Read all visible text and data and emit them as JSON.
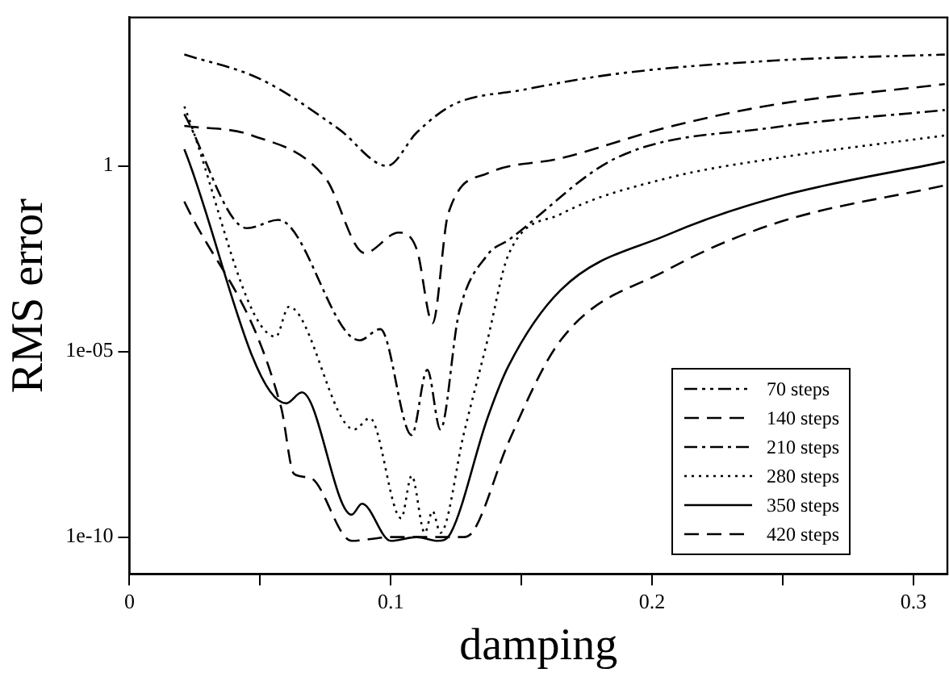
{
  "chart_data": {
    "type": "line",
    "xlabel": "damping",
    "ylabel": "RMS error",
    "log": "y",
    "grid": false,
    "legend": "bottom right",
    "marker": "none",
    "xlim": [
      0,
      0.313
    ],
    "xticks": [
      0,
      {
        "value": 0.05,
        "label": null
      },
      0.1,
      {
        "value": 0.15,
        "label": null
      },
      0.2,
      {
        "value": 0.25,
        "label": null
      },
      0.3
    ],
    "ylim": [
      1e-11,
      10000.0
    ],
    "yticks": [
      {
        "value": 1e-10,
        "label": "1e-10"
      },
      {
        "value": 1e-05,
        "label": "1e-05"
      },
      1
    ],
    "series": [
      {
        "name": "70 steps",
        "color": "#000000",
        "line_style": "dashdotdot",
        "x": [
          0.021,
          0.05,
          0.08,
          0.0986,
          0.11,
          0.124,
          0.15,
          0.186,
          0.247,
          0.312
        ],
        "values": [
          1000.0,
          220.0,
          10.0,
          1,
          8,
          45,
          110.0,
          300.0,
          690.0,
          1000.0
        ]
      },
      {
        "name": "140 steps",
        "color": "#000000",
        "line_style": "dashed",
        "x": [
          0.021,
          0.047,
          0.075,
          0.09,
          0.103,
          0.11,
          0.116,
          0.122,
          0.137,
          0.165,
          0.206,
          0.247,
          0.312
        ],
        "values": [
          12,
          6.6,
          0.47,
          0.0045,
          0.016,
          0.0055,
          5.8e-05,
          0.052,
          0.63,
          1.6,
          11,
          45,
          160.0
        ]
      },
      {
        "name": "210 steps",
        "color": "#000000",
        "line_style": "dashdot",
        "x": [
          0.021,
          0.045,
          0.057,
          0.088,
          0.096,
          0.108,
          0.114,
          0.119,
          0.126,
          0.137,
          0.145,
          0.186,
          0.247,
          0.312
        ],
        "values": [
          25,
          0.021,
          0.035,
          2e-05,
          4e-05,
          5.6e-08,
          3.2e-06,
          7.9e-08,
          0.0001,
          0.004,
          0.01,
          1.6,
          11,
          32
        ]
      },
      {
        "name": "280 steps",
        "color": "#000000",
        "line_style": "dotted",
        "x": [
          0.021,
          0.056,
          0.061,
          0.086,
          0.092,
          0.104,
          0.108,
          0.113,
          0.116,
          0.119,
          0.128,
          0.137,
          0.145,
          0.165,
          0.206,
          0.247,
          0.312
        ],
        "values": [
          40,
          2.5e-05,
          0.00016,
          7.9e-08,
          1.6e-07,
          3.2e-10,
          4.5e-09,
          1.3e-10,
          5e-10,
          1.3e-10,
          6.3e-08,
          2e-05,
          0.004,
          0.05,
          0.47,
          1.6,
          6.6
        ]
      },
      {
        "name": "350 steps",
        "color": "#000000",
        "line_style": "solid",
        "x": [
          0.021,
          0.06,
          0.066,
          0.085,
          0.089,
          0.1,
          0.11,
          0.118,
          0.123,
          0.137,
          0.145,
          0.165,
          0.206,
          0.247,
          0.312
        ],
        "values": [
          2.8,
          4e-07,
          7.9e-07,
          4e-10,
          7.9e-10,
          7.9e-11,
          1e-10,
          7.9e-11,
          1.3e-10,
          1.6e-07,
          4e-06,
          0.00045,
          0.014,
          0.14,
          1.3
        ]
      },
      {
        "name": "420 steps",
        "color": "#000000",
        "line_style": "dashed",
        "x": [
          0.021,
          0.058,
          0.063,
          0.069,
          0.085,
          0.1,
          0.115,
          0.128,
          0.132,
          0.145,
          0.165,
          0.206,
          0.247,
          0.312
        ],
        "values": [
          0.11,
          3.2e-07,
          5e-09,
          4e-09,
          7.9e-11,
          1e-10,
          1e-10,
          1e-10,
          1.6e-10,
          3.5e-08,
          2e-05,
          0.0016,
          0.028,
          0.3
        ]
      }
    ]
  }
}
